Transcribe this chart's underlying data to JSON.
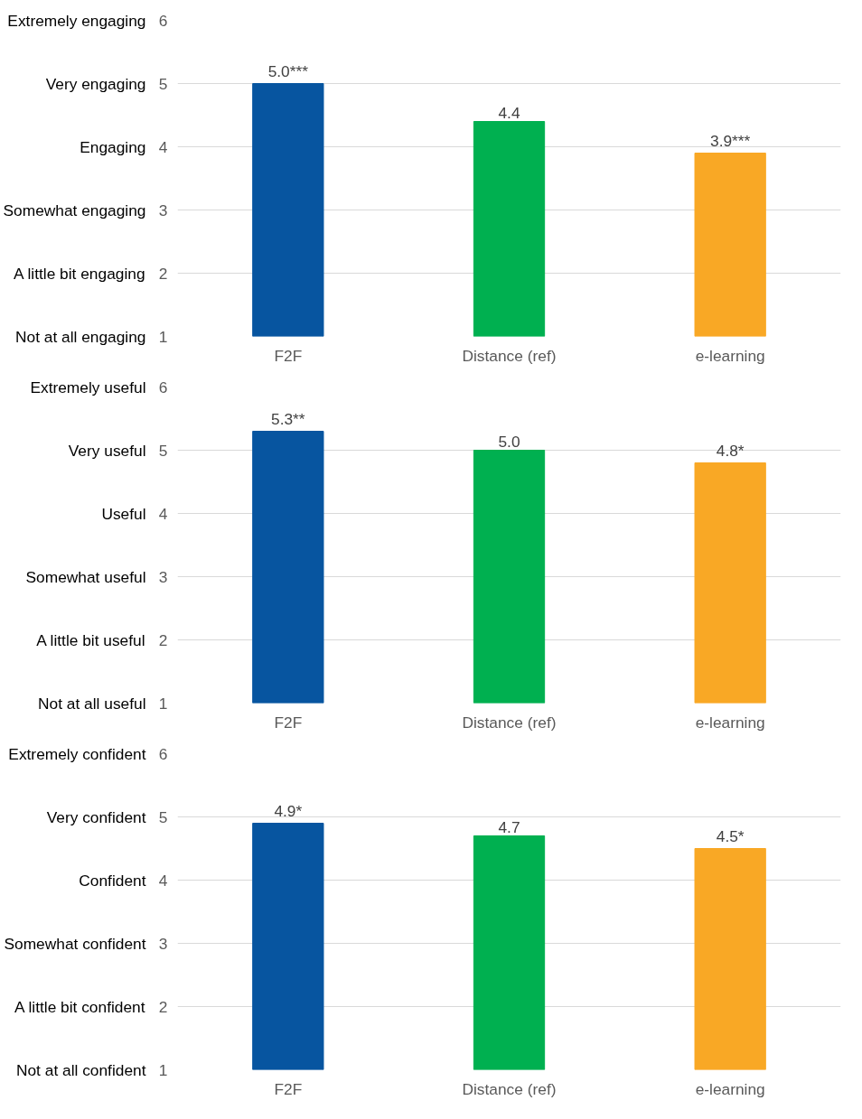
{
  "chart_data": [
    {
      "type": "bar",
      "categories": [
        "F2F",
        "Distance (ref)",
        "e-learning"
      ],
      "values": [
        5.0,
        4.4,
        3.9
      ],
      "colors": [
        "#0755a0",
        "#00b050",
        "#f9a825"
      ],
      "value_labels": [
        "5.0***",
        "4.4",
        "3.9***"
      ],
      "ylim": [
        1,
        6
      ],
      "yticks": [
        1,
        2,
        3,
        4,
        5,
        6
      ],
      "grid": "y",
      "annotations": [
        "Not at all engaging",
        "A little bit engaging",
        "Somewhat engaging",
        "Engaging",
        "Very engaging",
        "Extremely engaging"
      ]
    },
    {
      "type": "bar",
      "categories": [
        "F2F",
        "Distance (ref)",
        "e-learning"
      ],
      "values": [
        5.3,
        5.0,
        4.8
      ],
      "colors": [
        "#0755a0",
        "#00b050",
        "#f9a825"
      ],
      "value_labels": [
        "5.3**",
        "5.0",
        "4.8*"
      ],
      "ylim": [
        1,
        6
      ],
      "yticks": [
        1,
        2,
        3,
        4,
        5,
        6
      ],
      "grid": "y",
      "annotations": [
        "Not at all useful",
        "A little bit useful",
        "Somewhat useful",
        "Useful",
        "Very useful",
        "Extremely useful"
      ]
    },
    {
      "type": "bar",
      "categories": [
        "F2F",
        "Distance (ref)",
        "e-learning"
      ],
      "values": [
        4.9,
        4.7,
        4.5
      ],
      "colors": [
        "#0755a0",
        "#00b050",
        "#f9a825"
      ],
      "value_labels": [
        "4.9*",
        "4.7",
        "4.5*"
      ],
      "ylim": [
        1,
        6
      ],
      "yticks": [
        1,
        2,
        3,
        4,
        5,
        6
      ],
      "grid": "y",
      "annotations": [
        "Not at all confident",
        "A little bit confident",
        "Somewhat confident",
        "Confident",
        "Very confident",
        "Extremely confident"
      ]
    }
  ]
}
